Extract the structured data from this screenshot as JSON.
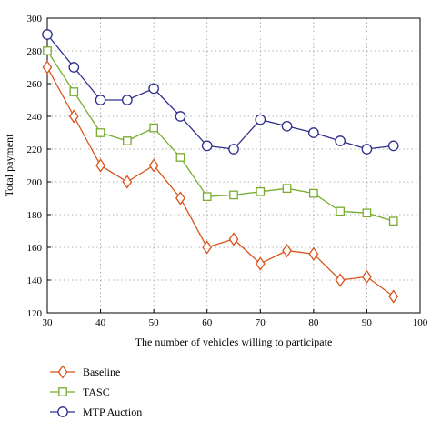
{
  "chart_data": {
    "type": "line",
    "xlabel": "The number of vehicles willing to participate",
    "ylabel": "Total payment",
    "xlim": [
      30,
      100
    ],
    "ylim": [
      120,
      300
    ],
    "xticks": [
      "30",
      "40",
      "50",
      "60",
      "70",
      "80",
      "90",
      "100"
    ],
    "yticks": [
      "120",
      "140",
      "160",
      "180",
      "200",
      "220",
      "240",
      "260",
      "280",
      "300"
    ],
    "grid": true,
    "legend_position": "bottom-left",
    "x": [
      30,
      35,
      40,
      45,
      50,
      55,
      60,
      65,
      70,
      75,
      80,
      85,
      90,
      95
    ],
    "series": [
      {
        "name": "Baseline",
        "marker": "diamond",
        "color": "#d95319",
        "values": [
          270,
          240,
          210,
          200,
          210,
          190,
          160,
          165,
          150,
          158,
          156,
          140,
          142,
          130
        ]
      },
      {
        "name": "TASC",
        "marker": "square",
        "color": "#77ac30",
        "values": [
          280,
          255,
          230,
          225,
          233,
          215,
          191,
          192,
          194,
          196,
          193,
          182,
          181,
          176
        ]
      },
      {
        "name": "MTP Auction",
        "marker": "circle",
        "color": "#2e2e8c",
        "values": [
          290,
          270,
          250,
          250,
          257,
          240,
          222,
          220,
          238,
          234,
          230,
          225,
          220,
          222
        ]
      }
    ]
  }
}
